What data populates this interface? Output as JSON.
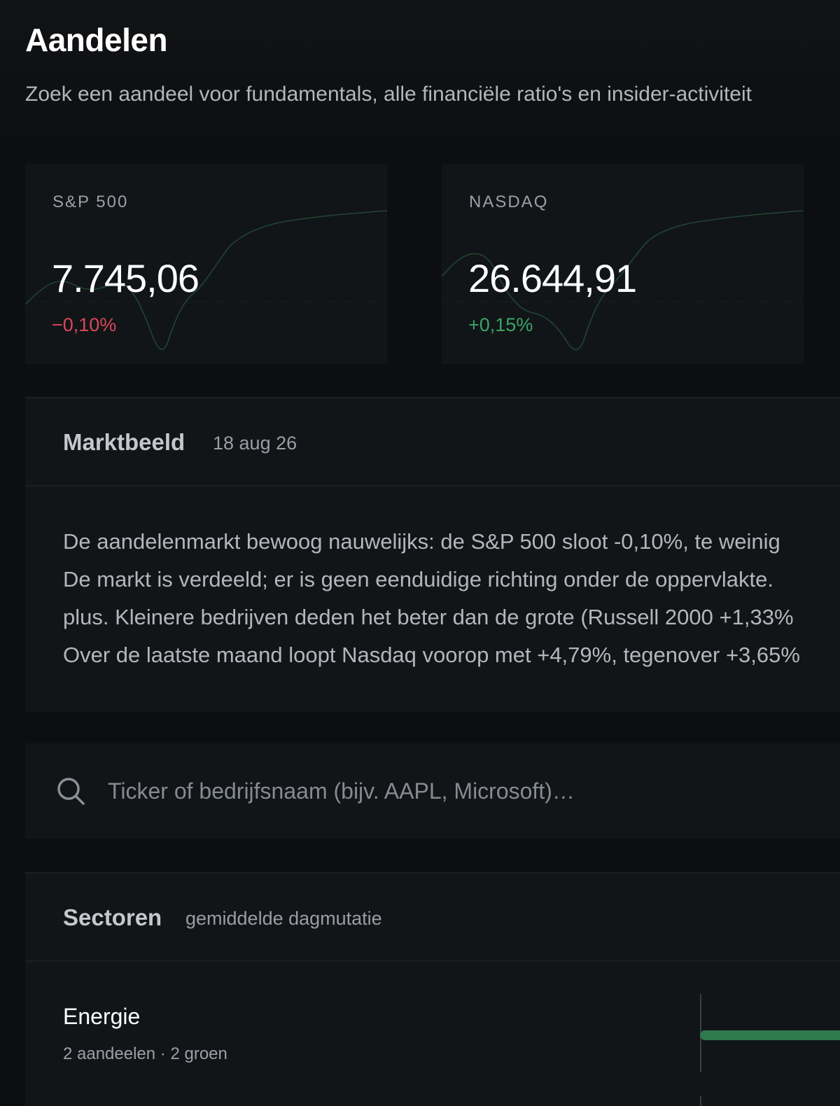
{
  "header": {
    "title": "Aandelen",
    "subtitle": "Zoek een aandeel voor fundamentals, alle financiële ratio's en insider-activiteit"
  },
  "indices": [
    {
      "name": "S&P 500",
      "value": "7.745,06",
      "change": "−0,10%",
      "change_color": "#d9475a",
      "sparkline_color": "#3aa564"
    },
    {
      "name": "NASDAQ",
      "value": "26.644,91",
      "change": "+0,15%",
      "change_color": "#3aa564",
      "sparkline_color": "#3aa564"
    }
  ],
  "overview": {
    "heading": "Marktbeeld",
    "date": "18 aug 26",
    "lines": [
      "De aandelenmarkt bewoog nauwelijks: de S&P 500 sloot -0,10%, te weinig",
      "De markt is verdeeld; er is geen eenduidige richting onder de oppervlakte.",
      "plus. Kleinere bedrijven deden het beter dan de grote (Russell 2000 +1,33%",
      "Over de laatste maand loopt Nasdaq voorop met +4,79%, tegenover +3,65%"
    ]
  },
  "search": {
    "icon": "search-icon",
    "placeholder": "Ticker of bedrijfsnaam (bijv. AAPL, Microsoft)…",
    "value": ""
  },
  "sectors": {
    "heading": "Sectoren",
    "subheading": "gemiddelde dagmutatie",
    "items": [
      {
        "name": "Energie",
        "detail": "2 aandeelen · 2 groen",
        "bar_color": "#2f7a4c"
      }
    ]
  },
  "colors": {
    "background": "#0c0e10",
    "card": "#121518",
    "negative": "#d9475a",
    "positive": "#3aa564"
  }
}
